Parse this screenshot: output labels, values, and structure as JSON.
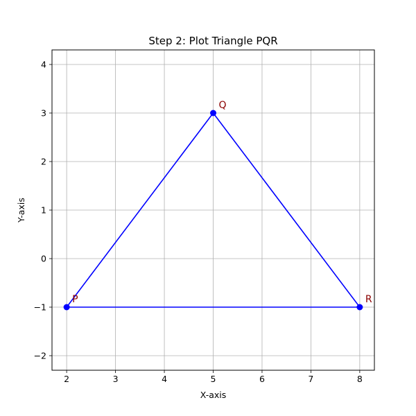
{
  "chart_data": {
    "type": "line",
    "title": "Step 2: Plot Triangle PQR",
    "xlabel": "X-axis",
    "ylabel": "Y-axis",
    "xlim": [
      1.7,
      8.3
    ],
    "ylim": [
      -2.3,
      4.3
    ],
    "xticks": [
      2,
      3,
      4,
      5,
      6,
      7,
      8
    ],
    "yticks": [
      -2,
      -1,
      0,
      1,
      2,
      3,
      4
    ],
    "xtick_labels": [
      "2",
      "3",
      "4",
      "5",
      "6",
      "7",
      "8"
    ],
    "ytick_labels": [
      "−2",
      "−1",
      "0",
      "1",
      "2",
      "3",
      "4"
    ],
    "grid": true,
    "line_color": "#0000ff",
    "label_color": "#8b0000",
    "points": [
      {
        "label": "P",
        "x": 2,
        "y": -1
      },
      {
        "label": "Q",
        "x": 5,
        "y": 3
      },
      {
        "label": "R",
        "x": 8,
        "y": -1
      }
    ],
    "closed": true
  }
}
